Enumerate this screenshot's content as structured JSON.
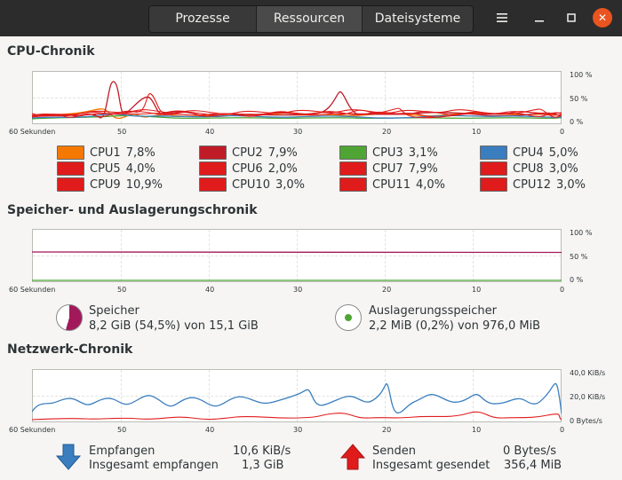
{
  "window": {
    "tabs": [
      {
        "label": "Prozesse",
        "active": false
      },
      {
        "label": "Ressourcen",
        "active": true
      },
      {
        "label": "Dateisysteme",
        "active": false
      }
    ],
    "menu_icon": "hamburger-menu-icon",
    "minimize_icon": "minimize-icon",
    "maximize_icon": "maximize-icon",
    "close_icon": "close-icon",
    "accent_close": "#e95420"
  },
  "cpu": {
    "title": "CPU-Chronik",
    "y_ticks": [
      "100 %",
      "50 %",
      "0 %"
    ],
    "x_ticks": [
      "60 Sekunden",
      "50",
      "40",
      "30",
      "20",
      "10",
      "0"
    ],
    "cores": [
      {
        "name": "CPU1",
        "value": "7,8%",
        "color": "#f57900"
      },
      {
        "name": "CPU2",
        "value": "7,9%",
        "color": "#c01c28"
      },
      {
        "name": "CPU3",
        "value": "3,1%",
        "color": "#4ea534"
      },
      {
        "name": "CPU4",
        "value": "5,0%",
        "color": "#3a7ebf"
      },
      {
        "name": "CPU5",
        "value": "4,0%",
        "color": "#e01b1b"
      },
      {
        "name": "CPU6",
        "value": "2,0%",
        "color": "#e01b1b"
      },
      {
        "name": "CPU7",
        "value": "7,9%",
        "color": "#e01b1b"
      },
      {
        "name": "CPU8",
        "value": "3,0%",
        "color": "#e01b1b"
      },
      {
        "name": "CPU9",
        "value": "10,9%",
        "color": "#e01b1b"
      },
      {
        "name": "CPU10",
        "value": "3,0%",
        "color": "#e01b1b"
      },
      {
        "name": "CPU11",
        "value": "4,0%",
        "color": "#e01b1b"
      },
      {
        "name": "CPU12",
        "value": "3,0%",
        "color": "#e01b1b"
      }
    ]
  },
  "memory": {
    "title": "Speicher- und Auslagerungschronik",
    "y_ticks": [
      "100 %",
      "50 %",
      "0 %"
    ],
    "x_ticks": [
      "60 Sekunden",
      "50",
      "40",
      "30",
      "20",
      "10",
      "0"
    ],
    "ram": {
      "label": "Speicher",
      "detail": "8,2 GiB (54,5%) von 15,1 GiB",
      "percent": 54.5,
      "color": "#a2195b"
    },
    "swap": {
      "label": "Auslagerungsspeicher",
      "detail": "2,2 MiB (0,2%) von 976,0 MiB",
      "percent": 0.2,
      "color": "#4ea534"
    }
  },
  "network": {
    "title": "Netzwerk-Chronik",
    "y_ticks": [
      "40,0 KiB/s",
      "20,0 KiB/s",
      "0 Bytes/s"
    ],
    "x_ticks": [
      "60 Sekunden",
      "50",
      "40",
      "30",
      "20",
      "10",
      "0"
    ],
    "receive": {
      "label": "Empfangen",
      "rate": "10,6 KiB/s",
      "total_label": "Insgesamt empfangen",
      "total": "1,3 GiB",
      "color": "#3a7ebf"
    },
    "send": {
      "label": "Senden",
      "rate": "0 Bytes/s",
      "total_label": "Insgesamt gesendet",
      "total": "356,4 MiB",
      "color": "#e01b1b"
    }
  }
}
